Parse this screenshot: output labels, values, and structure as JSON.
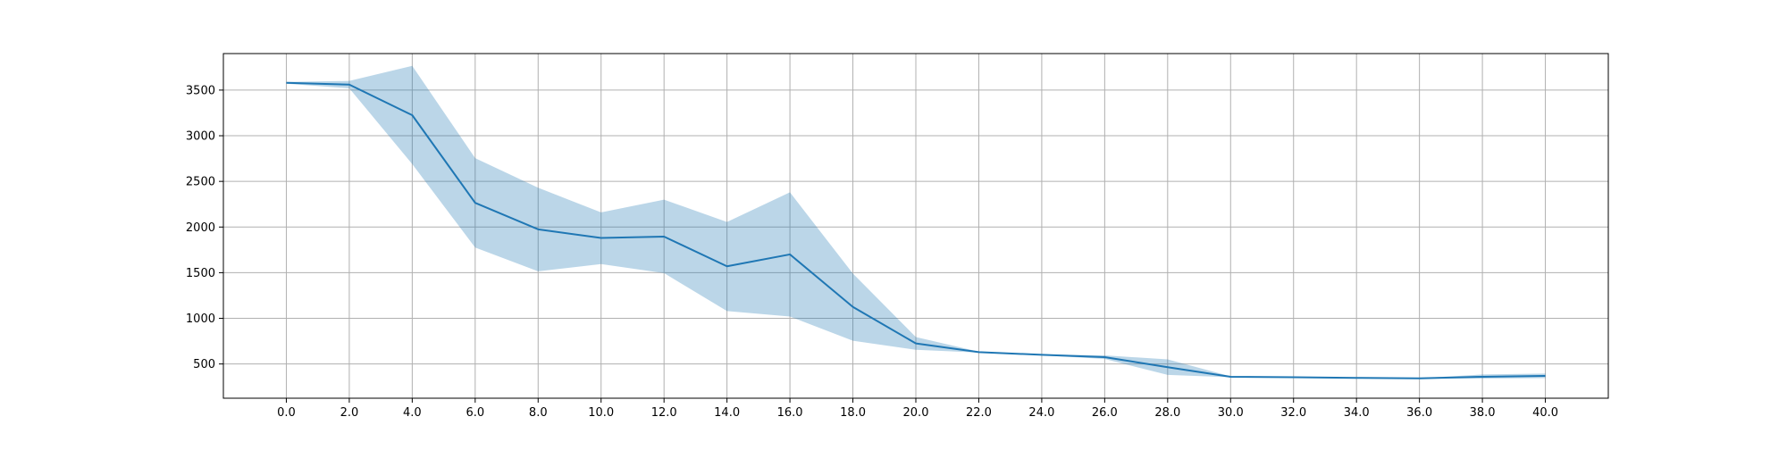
{
  "chart_data": {
    "type": "line",
    "title": "",
    "xlabel": "",
    "ylabel": "",
    "grid": true,
    "legend": "none",
    "xlim": [
      -2.0,
      42.0
    ],
    "ylim": [
      125,
      3900
    ],
    "x_ticks": [
      0.0,
      2.0,
      4.0,
      6.0,
      8.0,
      10.0,
      12.0,
      14.0,
      16.0,
      18.0,
      20.0,
      22.0,
      24.0,
      26.0,
      28.0,
      30.0,
      32.0,
      34.0,
      36.0,
      38.0,
      40.0
    ],
    "x_tick_labels": [
      "0.0",
      "2.0",
      "4.0",
      "6.0",
      "8.0",
      "10.0",
      "12.0",
      "14.0",
      "16.0",
      "18.0",
      "20.0",
      "22.0",
      "24.0",
      "26.0",
      "28.0",
      "30.0",
      "32.0",
      "34.0",
      "36.0",
      "38.0",
      "40.0"
    ],
    "y_ticks": [
      500,
      1000,
      1500,
      2000,
      2500,
      3000,
      3500
    ],
    "y_tick_labels": [
      "500",
      "1000",
      "1500",
      "2000",
      "2500",
      "3000",
      "3500"
    ],
    "x": [
      0,
      2,
      4,
      6,
      8,
      10,
      12,
      14,
      16,
      18,
      20,
      22,
      24,
      26,
      28,
      30,
      32,
      34,
      36,
      38,
      40
    ],
    "series": [
      {
        "values": [
          3580,
          3560,
          3225,
          2265,
          1975,
          1880,
          1895,
          1570,
          1700,
          1125,
          725,
          630,
          600,
          575,
          465,
          360,
          355,
          348,
          342,
          360,
          370
        ],
        "lower": [
          3570,
          3520,
          2690,
          1775,
          1515,
          1595,
          1495,
          1080,
          1020,
          755,
          655,
          625,
          595,
          555,
          380,
          355,
          350,
          345,
          340,
          340,
          345
        ],
        "upper": [
          3590,
          3600,
          3765,
          2755,
          2430,
          2160,
          2300,
          2055,
          2380,
          1490,
          795,
          635,
          605,
          595,
          550,
          365,
          360,
          352,
          345,
          385,
          395
        ],
        "color": "#1f77b4",
        "band_color": "#1f77b4",
        "band_opacity": 0.3
      }
    ],
    "colors": {
      "grid": "#b0b0b0",
      "axes": "#000000",
      "line": "#1f77b4"
    }
  }
}
